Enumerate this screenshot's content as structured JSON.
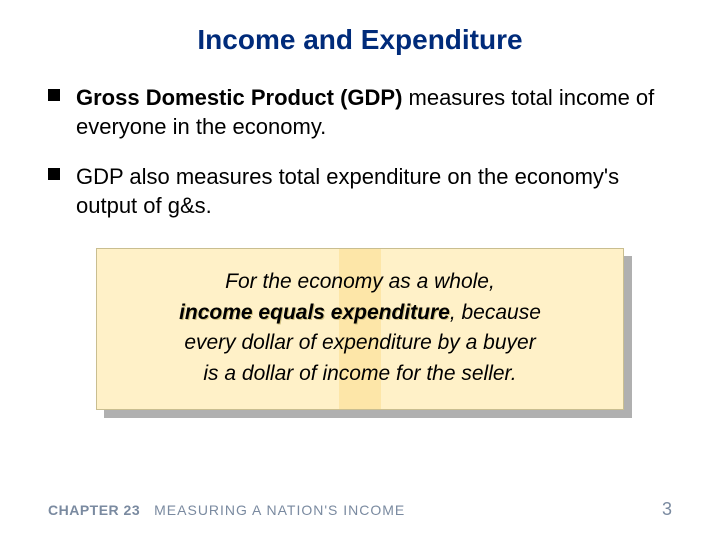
{
  "title": "Income and Expenditure",
  "bullets": [
    {
      "bold": "Gross Domestic Product (GDP)",
      "rest": " measures total income of everyone in the economy."
    },
    {
      "bold": "",
      "rest": "GDP also measures total expenditure on the economy's output of g&s."
    }
  ],
  "callout": {
    "line1": "For the economy as a whole,",
    "key": "income equals expenditure",
    "after_key": ", because",
    "line3": "every dollar of expenditure by a buyer",
    "line4": "is a dollar of income for the seller."
  },
  "footer": {
    "chapter_label": "CHAPTER 23",
    "chapter_title": "MEASURING A NATION'S INCOME",
    "page_number": "3"
  },
  "colors": {
    "title_color": "#002b7a",
    "bullet_square": "#000000",
    "callout_bg_light": "#fff1c8",
    "callout_bg_mid": "#fde6a8",
    "callout_border": "#c9be90",
    "shadow": "#b0b0b0",
    "footer_text": "#7a8aa0"
  }
}
